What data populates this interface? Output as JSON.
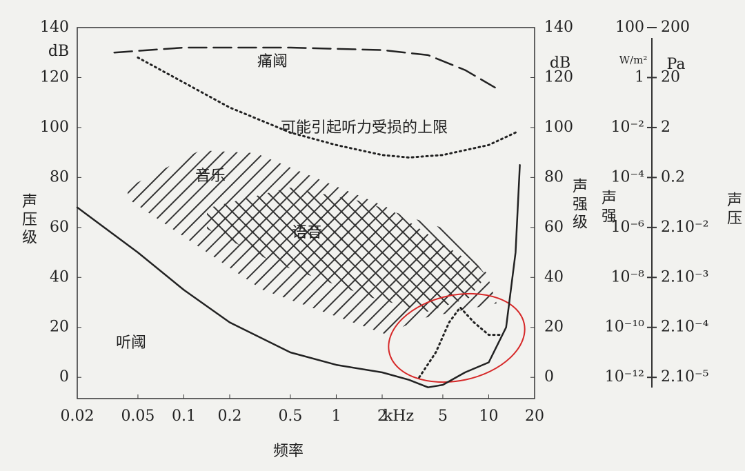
{
  "chart_data": {
    "type": "line",
    "x_label": "频率",
    "x_unit": "kHz",
    "y_label": "声压级",
    "y_unit": "dB",
    "y2_label": "声强级",
    "y2_unit": "dB",
    "xlog": true,
    "xlim": [
      0.02,
      20
    ],
    "xticks": [
      0.02,
      0.05,
      0.1,
      0.2,
      0.5,
      1,
      2,
      5,
      10,
      20
    ],
    "ylim": [
      -8.5,
      140
    ],
    "yticks": [
      0,
      20,
      40,
      60,
      80,
      100,
      120,
      140
    ],
    "y2lim": [
      -8.5,
      140
    ],
    "y2ticks": [
      0,
      20,
      40,
      60,
      80,
      100,
      120,
      140
    ],
    "intensity_axis": {
      "label": "声强",
      "unit": "W/m²",
      "log": true,
      "ticks": [
        {
          "value": 1e-12,
          "label": "10⁻¹²"
        },
        {
          "value": 1e-10,
          "label": "10⁻¹⁰"
        },
        {
          "value": 1e-08,
          "label": "10⁻⁸"
        },
        {
          "value": 1e-06,
          "label": "10⁻⁶"
        },
        {
          "value": 0.0001,
          "label": "10⁻⁴"
        },
        {
          "value": 0.01,
          "label": "10⁻²"
        },
        1,
        100
      ]
    },
    "pressure_axis": {
      "label": "声压",
      "unit": "Pa",
      "log": true,
      "ticks": [
        {
          "value": 2e-05,
          "label": "2.10⁻⁵"
        },
        {
          "value": 0.0002,
          "label": "2.10⁻⁴"
        },
        {
          "value": 0.002,
          "label": "2.10⁻³"
        },
        {
          "value": 0.02,
          "label": "2.10⁻²"
        },
        0.2,
        2,
        20,
        200
      ]
    },
    "series": [
      {
        "name": "痛阈",
        "color": "#222222",
        "style": "dashed",
        "x": [
          0.035,
          0.1,
          0.5,
          2,
          4,
          7,
          11
        ],
        "values": [
          130,
          132,
          132,
          131,
          129,
          123,
          116
        ]
      },
      {
        "name": "可能引起听力受损的上限",
        "color": "#222222",
        "style": "dotted",
        "x": [
          0.05,
          0.1,
          0.2,
          0.5,
          1,
          2,
          3,
          5,
          10,
          15
        ],
        "values": [
          128,
          118,
          108,
          98,
          93,
          89,
          88,
          89,
          93,
          98
        ]
      },
      {
        "name": "听阈",
        "color": "#222222",
        "style": "solid",
        "x": [
          0.02,
          0.05,
          0.1,
          0.2,
          0.5,
          1,
          2,
          3,
          4,
          5,
          7,
          10,
          13,
          15,
          16
        ],
        "values": [
          68,
          50,
          35,
          22,
          10,
          5,
          2,
          -1,
          -4,
          -3,
          2,
          6,
          20,
          50,
          85
        ]
      },
      {
        "color": "#222222",
        "style": "dotted",
        "x": [
          3.5,
          4.5,
          5.5,
          6.5,
          8,
          10,
          12
        ],
        "values": [
          0,
          10,
          22,
          28,
          22,
          17,
          17
        ]
      }
    ],
    "regions": [
      {
        "label": "音乐"
      },
      {
        "label": "语音"
      }
    ],
    "highlight_color": "#d62828"
  }
}
